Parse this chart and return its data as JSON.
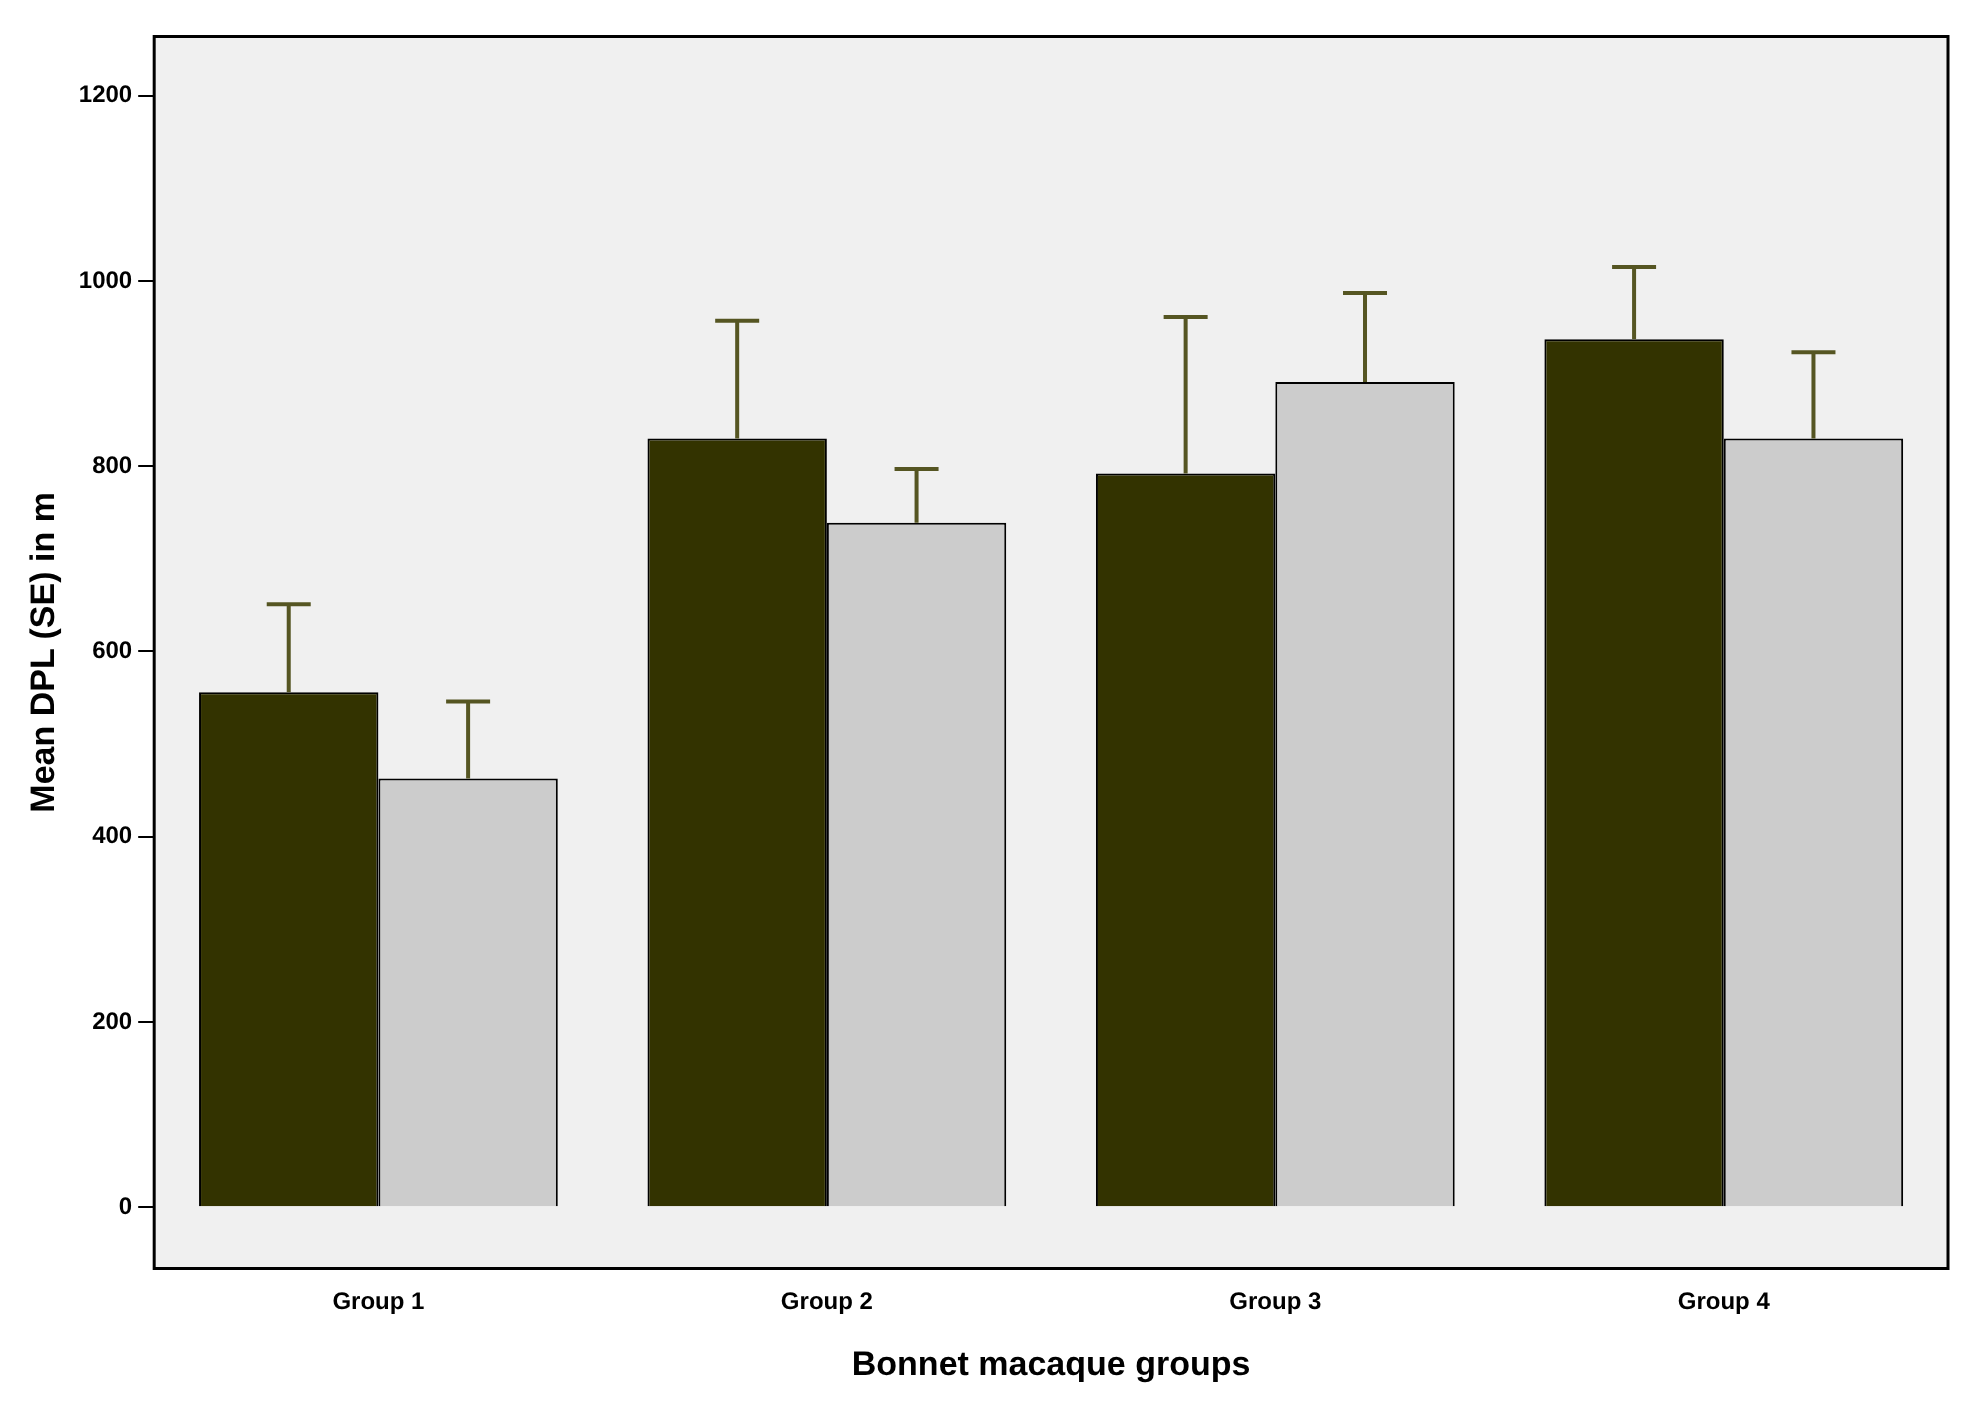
{
  "chart_data": {
    "type": "bar",
    "xlabel": "Bonnet macaque groups",
    "ylabel": "Mean DPL (SE) in m",
    "categories": [
      "Group 1",
      "Group 2",
      "Group 3",
      "Group 4"
    ],
    "series": [
      {
        "color": "#333300",
        "values": [
          556,
          830,
          792,
          937
        ],
        "errors": [
          [
            556,
            651
          ],
          [
            830,
            957
          ],
          [
            792,
            961
          ],
          [
            937,
            1015
          ]
        ]
      },
      {
        "color": "#cccccc",
        "values": [
          463,
          739,
          891,
          830
        ],
        "errors": [
          [
            463,
            546
          ],
          [
            739,
            797
          ],
          [
            891,
            987
          ],
          [
            830,
            923
          ]
        ]
      }
    ],
    "ylim": [
      -66,
      1264
    ],
    "yticks": [
      0,
      200,
      400,
      600,
      800,
      1000,
      1200
    ],
    "grid": false,
    "legend": false
  }
}
